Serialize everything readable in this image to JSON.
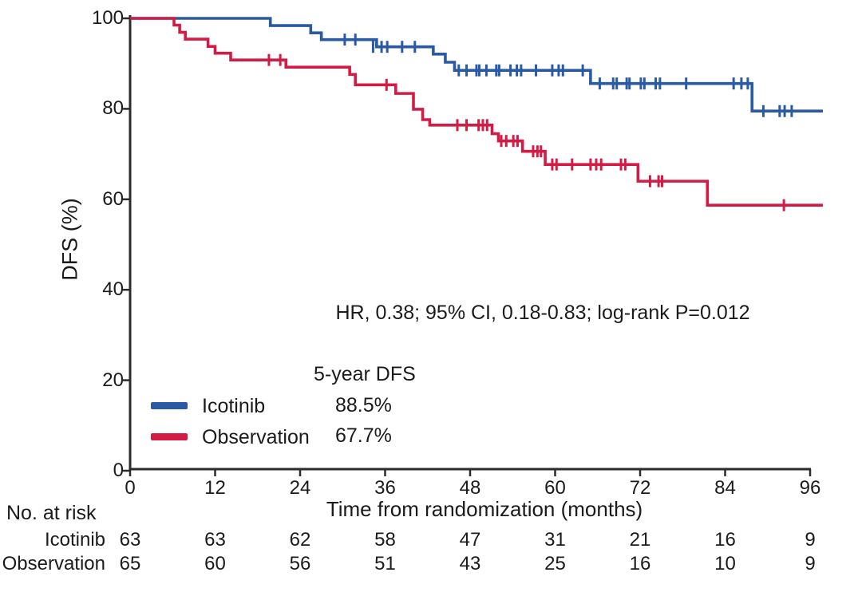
{
  "chart_data": {
    "type": "line",
    "subtype": "kaplan-meier-step",
    "title": "",
    "xlabel": "Time from randomization (months)",
    "ylabel": "DFS (%)",
    "xlim": [
      0,
      96
    ],
    "ylim": [
      0,
      100
    ],
    "xticks": [
      0,
      12,
      24,
      36,
      48,
      60,
      72,
      84,
      96
    ],
    "yticks": [
      0,
      20,
      40,
      60,
      80,
      100
    ],
    "grid": false,
    "axis_color": "#2b2b2b",
    "annotation": "HR, 0.38; 95% CI, 0.18-0.83; log-rank P=0.012",
    "series": [
      {
        "name": "Icotinib",
        "color": "#2b5aa5",
        "end_time": 97.8,
        "steps": [
          [
            0,
            100
          ],
          [
            19.8,
            98.4
          ],
          [
            25.5,
            96.8
          ],
          [
            27,
            95.3
          ],
          [
            34.8,
            93.7
          ],
          [
            42.8,
            92.1
          ],
          [
            44.5,
            90.3
          ],
          [
            45.8,
            88.5
          ],
          [
            65,
            85.6
          ],
          [
            87.8,
            79.5
          ]
        ],
        "censors": [
          [
            30.3,
            95.3
          ],
          [
            31.8,
            95.3
          ],
          [
            34.3,
            93.7
          ],
          [
            35.5,
            93.7
          ],
          [
            36.3,
            93.7
          ],
          [
            38.4,
            93.7
          ],
          [
            40.2,
            93.7
          ],
          [
            46.4,
            88.5
          ],
          [
            47.5,
            88.5
          ],
          [
            48.9,
            88.5
          ],
          [
            49.3,
            88.5
          ],
          [
            50.3,
            88.5
          ],
          [
            51.7,
            88.5
          ],
          [
            52.1,
            88.5
          ],
          [
            53.7,
            88.5
          ],
          [
            54.6,
            88.5
          ],
          [
            55.2,
            88.5
          ],
          [
            57.3,
            88.5
          ],
          [
            59.6,
            88.5
          ],
          [
            60.5,
            88.5
          ],
          [
            61.1,
            88.5
          ],
          [
            63.9,
            88.5
          ],
          [
            66.3,
            85.6
          ],
          [
            68.2,
            85.6
          ],
          [
            68.7,
            85.6
          ],
          [
            70.1,
            85.6
          ],
          [
            70.5,
            85.6
          ],
          [
            72.1,
            85.6
          ],
          [
            72.6,
            85.6
          ],
          [
            74.2,
            85.6
          ],
          [
            74.8,
            85.6
          ],
          [
            78.5,
            85.6
          ],
          [
            85.2,
            85.6
          ],
          [
            86.3,
            85.6
          ],
          [
            87.2,
            85.6
          ],
          [
            89.4,
            79.5
          ],
          [
            91.7,
            79.5
          ],
          [
            92.4,
            79.5
          ],
          [
            93.4,
            79.5
          ]
        ]
      },
      {
        "name": "Observation",
        "color": "#d31c45",
        "end_time": 97.8,
        "steps": [
          [
            0,
            100
          ],
          [
            6.2,
            98.5
          ],
          [
            7,
            96.9
          ],
          [
            7.8,
            95.4
          ],
          [
            11,
            93.8
          ],
          [
            12,
            92.3
          ],
          [
            14.2,
            90.8
          ],
          [
            22,
            89.2
          ],
          [
            31,
            87.6
          ],
          [
            31.8,
            85.3
          ],
          [
            37.5,
            83.4
          ],
          [
            40,
            79.9
          ],
          [
            41.3,
            77.6
          ],
          [
            42.3,
            76.4
          ],
          [
            51.1,
            74.5
          ],
          [
            52,
            72.9
          ],
          [
            55.4,
            70.6
          ],
          [
            58.6,
            67.7
          ],
          [
            71.7,
            64.0
          ],
          [
            81.5,
            58.7
          ]
        ],
        "censors": [
          [
            19.6,
            90.8
          ],
          [
            21.2,
            90.8
          ],
          [
            36.2,
            85.3
          ],
          [
            46.2,
            76.4
          ],
          [
            47.5,
            76.4
          ],
          [
            49.2,
            76.4
          ],
          [
            49.8,
            76.4
          ],
          [
            50.4,
            76.4
          ],
          [
            52.4,
            72.9
          ],
          [
            53.1,
            72.9
          ],
          [
            54.1,
            72.9
          ],
          [
            54.7,
            72.9
          ],
          [
            56.9,
            70.6
          ],
          [
            57.5,
            70.6
          ],
          [
            58,
            70.6
          ],
          [
            59.6,
            67.7
          ],
          [
            60.2,
            67.7
          ],
          [
            62.4,
            67.7
          ],
          [
            65,
            67.7
          ],
          [
            65.8,
            67.7
          ],
          [
            66.5,
            67.7
          ],
          [
            69.3,
            67.7
          ],
          [
            69.9,
            67.7
          ],
          [
            73.4,
            64.0
          ],
          [
            74.6,
            64.0
          ],
          [
            75.1,
            64.0
          ],
          [
            92.3,
            58.7
          ]
        ]
      }
    ],
    "legend": {
      "position": "inside-lower-left",
      "header": "5-year DFS",
      "entries": [
        {
          "label": "Icotinib",
          "value": "88.5%"
        },
        {
          "label": "Observation",
          "value": "67.7%"
        }
      ]
    },
    "risk_table": {
      "title": "No. at risk",
      "times": [
        0,
        12,
        24,
        36,
        48,
        60,
        72,
        84,
        96
      ],
      "rows": [
        {
          "label": "Icotinib",
          "counts": [
            63,
            63,
            62,
            58,
            47,
            31,
            21,
            16,
            9
          ]
        },
        {
          "label": "Observation",
          "counts": [
            65,
            60,
            56,
            51,
            43,
            25,
            16,
            10,
            9
          ]
        }
      ]
    }
  }
}
